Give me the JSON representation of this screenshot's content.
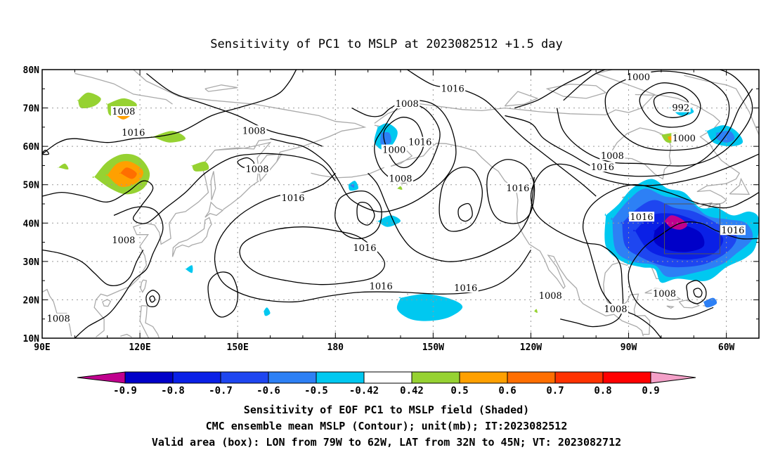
{
  "title": "Sensitivity of PC1 to MSLP at 2023082512 +1.5 day",
  "map": {
    "lat_labels": [
      "80N",
      "70N",
      "60N",
      "50N",
      "40N",
      "30N",
      "20N",
      "10N"
    ],
    "lon_labels": [
      "90E",
      "120E",
      "150E",
      "180",
      "150W",
      "120W",
      "90W",
      "60W"
    ],
    "contour_labels": [
      {
        "text": "1016",
        "lon": -144,
        "lat": 75
      },
      {
        "text": "1008",
        "lon": -158,
        "lat": 71
      },
      {
        "text": "1000",
        "lon": -87,
        "lat": 78
      },
      {
        "text": "992",
        "lon": -74,
        "lat": 70
      },
      {
        "text": "1008",
        "lon": 115,
        "lat": 69
      },
      {
        "text": "1016",
        "lon": 118,
        "lat": 63.5
      },
      {
        "text": "1008",
        "lon": 155,
        "lat": 64
      },
      {
        "text": "1016",
        "lon": -154,
        "lat": 61
      },
      {
        "text": "1000",
        "lon": -162,
        "lat": 59
      },
      {
        "text": "1000",
        "lon": -73,
        "lat": 62
      },
      {
        "text": "1008",
        "lon": -95,
        "lat": 57.5
      },
      {
        "text": "1016",
        "lon": -98,
        "lat": 54.5
      },
      {
        "text": "1008",
        "lon": 156,
        "lat": 54
      },
      {
        "text": "1008",
        "lon": -160,
        "lat": 51.5
      },
      {
        "text": "1016",
        "lon": -124,
        "lat": 49
      },
      {
        "text": "1016",
        "lon": 167,
        "lat": 46.5
      },
      {
        "text": "1016",
        "lon": -86,
        "lat": 41.5
      },
      {
        "text": "1016",
        "lon": -58,
        "lat": 38
      },
      {
        "text": "1008",
        "lon": 115,
        "lat": 35.5
      },
      {
        "text": "1016",
        "lon": -171,
        "lat": 33.5
      },
      {
        "text": "1016",
        "lon": -166,
        "lat": 23.5
      },
      {
        "text": "1016",
        "lon": -140,
        "lat": 23
      },
      {
        "text": "1008",
        "lon": -114,
        "lat": 21
      },
      {
        "text": "1008",
        "lon": -94,
        "lat": 17.5
      },
      {
        "text": "1008",
        "lon": -79,
        "lat": 21.5
      },
      {
        "text": "1008",
        "lon": 95,
        "lat": 15
      }
    ]
  },
  "colorbar": {
    "labels": [
      "-0.9",
      "-0.8",
      "-0.7",
      "-0.6",
      "-0.5",
      "-0.42",
      "0.42",
      "0.5",
      "0.6",
      "0.7",
      "0.8",
      "0.9"
    ],
    "colors": [
      "#c0008e",
      "#0000c8",
      "#0a20e6",
      "#1e46f0",
      "#2d80f5",
      "#00c8f0",
      "#ffffff",
      "#96d232",
      "#ffa000",
      "#ff6e00",
      "#ff3200",
      "#ff0000",
      "#f4a0c8"
    ]
  },
  "footer": {
    "line1": "Sensitivity of EOF PC1 to MSLP field (Shaded)",
    "line2": "CMC ensemble mean MSLP (Contour); unit(mb); IT:2023082512",
    "line3": "Valid area (box): LON from 79W to 62W, LAT from 32N to 45N; VT: 2023082712"
  }
}
